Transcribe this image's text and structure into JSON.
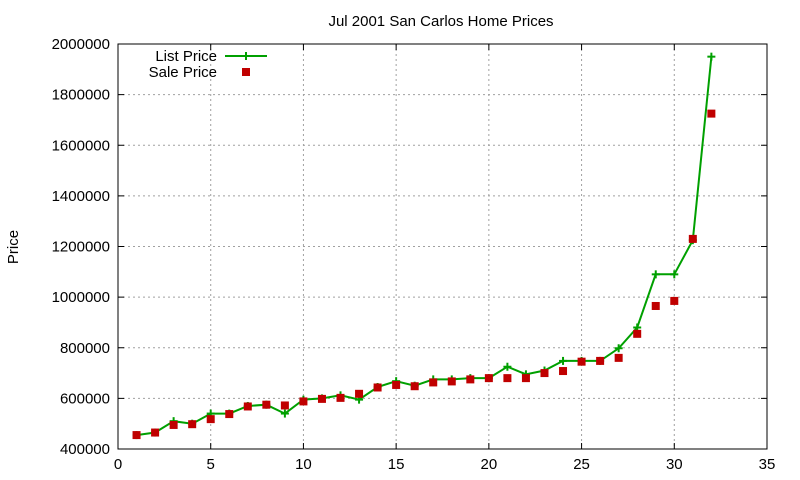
{
  "chart_data": {
    "type": "line",
    "title": "Jul 2001 San Carlos Home Prices",
    "xlabel": "",
    "ylabel": "Price",
    "xlim": [
      0,
      35
    ],
    "ylim": [
      400000,
      2000000
    ],
    "grid": true,
    "legend_position": "top-left",
    "x_ticks": [
      0,
      5,
      10,
      15,
      20,
      25,
      30,
      35
    ],
    "y_ticks": [
      400000,
      600000,
      800000,
      1000000,
      1200000,
      1400000,
      1600000,
      1800000,
      2000000
    ],
    "x_tick_labels": [
      "0",
      "5",
      "10",
      "15",
      "20",
      "25",
      "30",
      "35"
    ],
    "y_tick_labels": [
      "400000",
      "600000",
      "800000",
      "1000000",
      "1200000",
      "1400000",
      "1600000",
      "1800000",
      "2000000"
    ],
    "series": [
      {
        "name": "List Price",
        "style": "line-plus",
        "color": "#00a000",
        "x": [
          1,
          2,
          3,
          4,
          5,
          6,
          7,
          8,
          9,
          10,
          11,
          12,
          13,
          14,
          15,
          16,
          17,
          18,
          19,
          20,
          21,
          22,
          23,
          24,
          25,
          26,
          27,
          28,
          29,
          30,
          31,
          32
        ],
        "y": [
          455000,
          465000,
          510000,
          500000,
          540000,
          540000,
          570000,
          575000,
          540000,
          595000,
          600000,
          612000,
          595000,
          645000,
          668000,
          650000,
          675000,
          675000,
          680000,
          680000,
          725000,
          695000,
          710000,
          748000,
          748000,
          748000,
          798000,
          880000,
          1090000,
          1090000,
          1225000,
          1950000
        ]
      },
      {
        "name": "Sale Price",
        "style": "square",
        "color": "#c00000",
        "x": [
          1,
          2,
          3,
          4,
          5,
          6,
          7,
          8,
          9,
          10,
          11,
          12,
          13,
          14,
          15,
          16,
          17,
          18,
          19,
          20,
          21,
          22,
          23,
          24,
          25,
          26,
          27,
          28,
          29,
          30,
          31,
          32
        ],
        "y": [
          455000,
          465000,
          495000,
          498000,
          518000,
          538000,
          568000,
          575000,
          572000,
          588000,
          598000,
          602000,
          618000,
          643000,
          653000,
          648000,
          663000,
          667000,
          675000,
          680000,
          680000,
          680000,
          700000,
          708000,
          745000,
          748000,
          760000,
          855000,
          965000,
          985000,
          1230000,
          1725000
        ]
      }
    ]
  }
}
